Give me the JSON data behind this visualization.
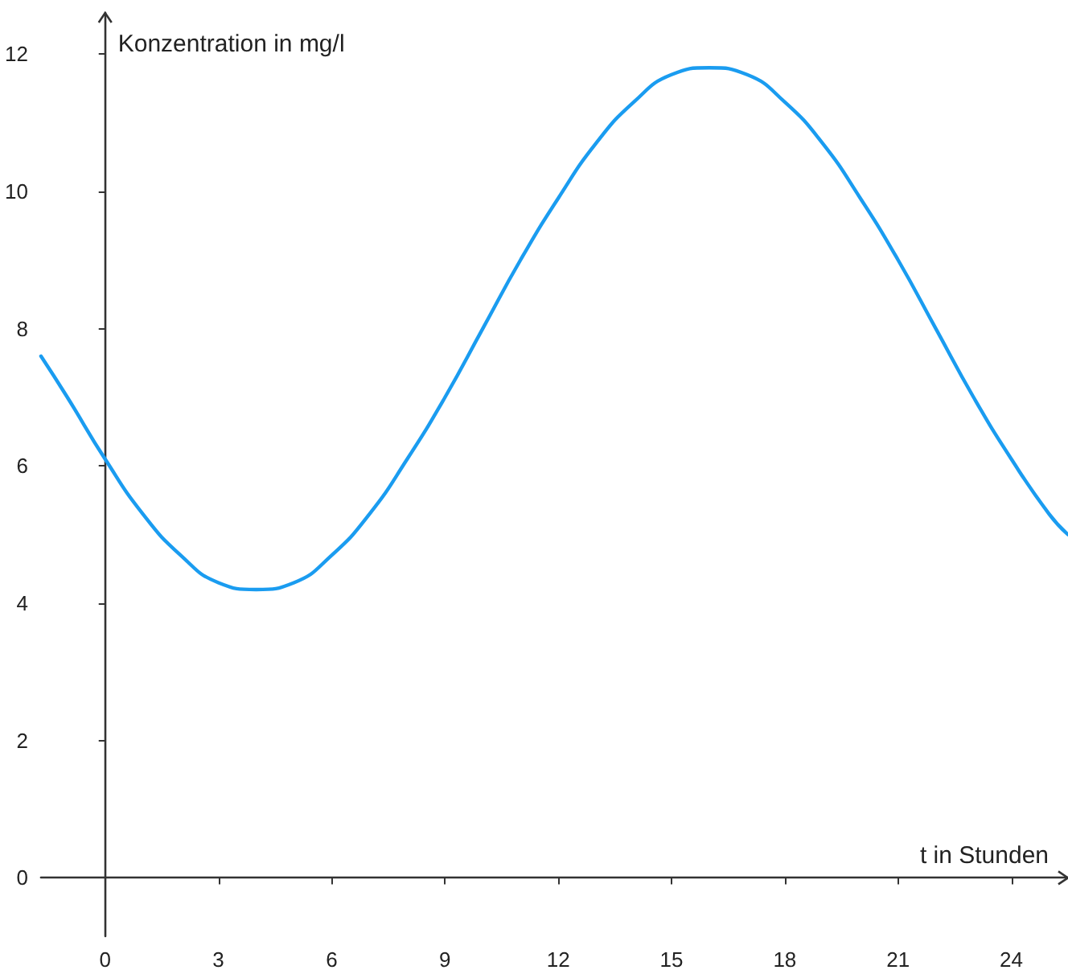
{
  "chart_data": {
    "type": "line",
    "xlabel": "t in Stunden",
    "ylabel": "Konzentration in mg/l",
    "x": [
      -1.7,
      -1,
      0,
      1,
      2,
      3,
      4,
      5,
      6,
      7,
      8,
      9,
      10,
      11,
      12,
      13,
      14,
      15,
      16,
      17,
      18,
      19,
      20,
      21,
      22,
      23,
      24,
      25,
      25.5
    ],
    "series": [
      {
        "color": "#1a9cf0",
        "values": [
          7.6,
          7.0,
          6.1,
          5.3,
          4.7,
          4.3,
          4.2,
          4.3,
          4.7,
          5.3,
          6.1,
          7.0,
          8.0,
          9.0,
          9.9,
          10.7,
          11.3,
          11.7,
          11.8,
          11.7,
          11.3,
          10.7,
          9.9,
          9.0,
          8.0,
          7.0,
          6.1,
          5.3,
          5.0
        ]
      }
    ],
    "xlim": [
      -1.7,
      25.5
    ],
    "ylim": [
      -0.85,
      12.6
    ],
    "xticks": [
      0,
      3,
      6,
      9,
      12,
      15,
      18,
      21,
      24
    ],
    "yticks": [
      0,
      2,
      4,
      6,
      8,
      10,
      12
    ],
    "marker": "none",
    "line_style": "solid"
  }
}
